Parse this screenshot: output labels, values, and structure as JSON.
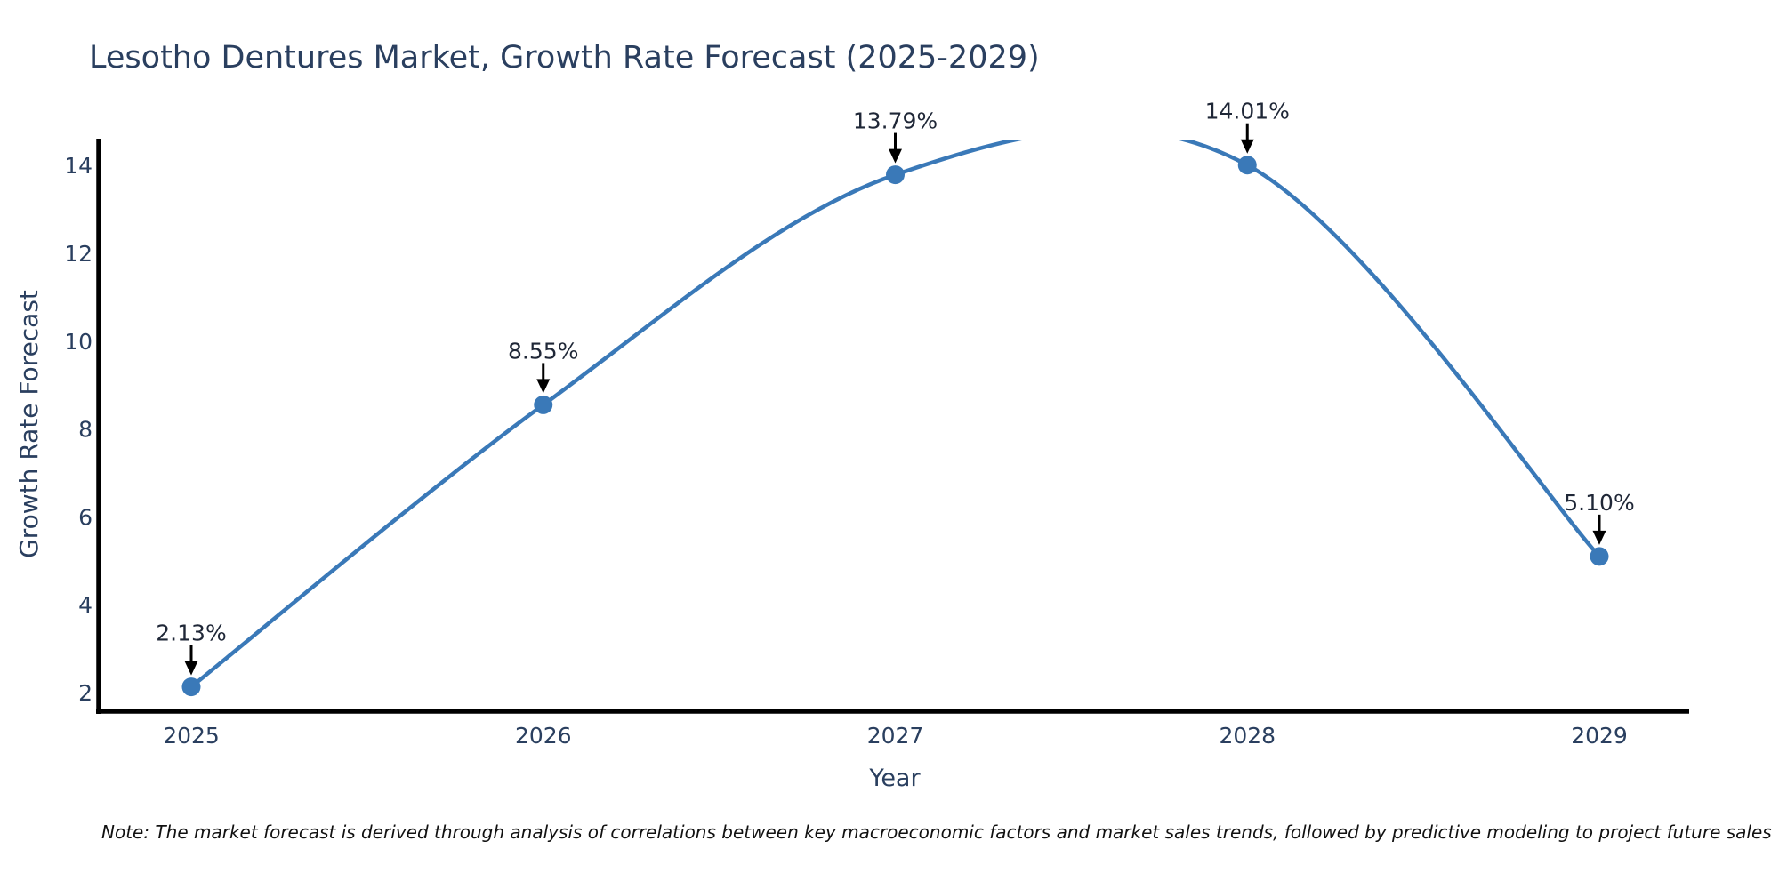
{
  "chart_data": {
    "type": "line",
    "title": "Lesotho Dentures Market, Growth Rate Forecast (2025-2029)",
    "xlabel": "Year",
    "ylabel": "Growth Rate Forecast",
    "categories": [
      "2025",
      "2026",
      "2027",
      "2028",
      "2029"
    ],
    "values": [
      2.13,
      8.55,
      13.79,
      14.01,
      5.1
    ],
    "point_labels": [
      "2.13%",
      "8.55%",
      "13.79%",
      "14.01%",
      "5.10%"
    ],
    "yticks": [
      2,
      4,
      6,
      8,
      10,
      12,
      14
    ],
    "ylim": [
      1.55,
      14.63
    ],
    "line_shape": "spline",
    "grid": false,
    "legend": false,
    "colors": {
      "line": "#3a79b8",
      "marker": "#3a79b8",
      "arrow": "#000000",
      "axis_line": "#000000",
      "text": "#2a3f5f",
      "annotation_text": "#1f2737",
      "note_text": "#111111"
    },
    "note": "Note: The market forecast is derived through analysis of correlations between key macroeconomic factors and market sales trends, followed by predictive modeling to project future sales"
  }
}
